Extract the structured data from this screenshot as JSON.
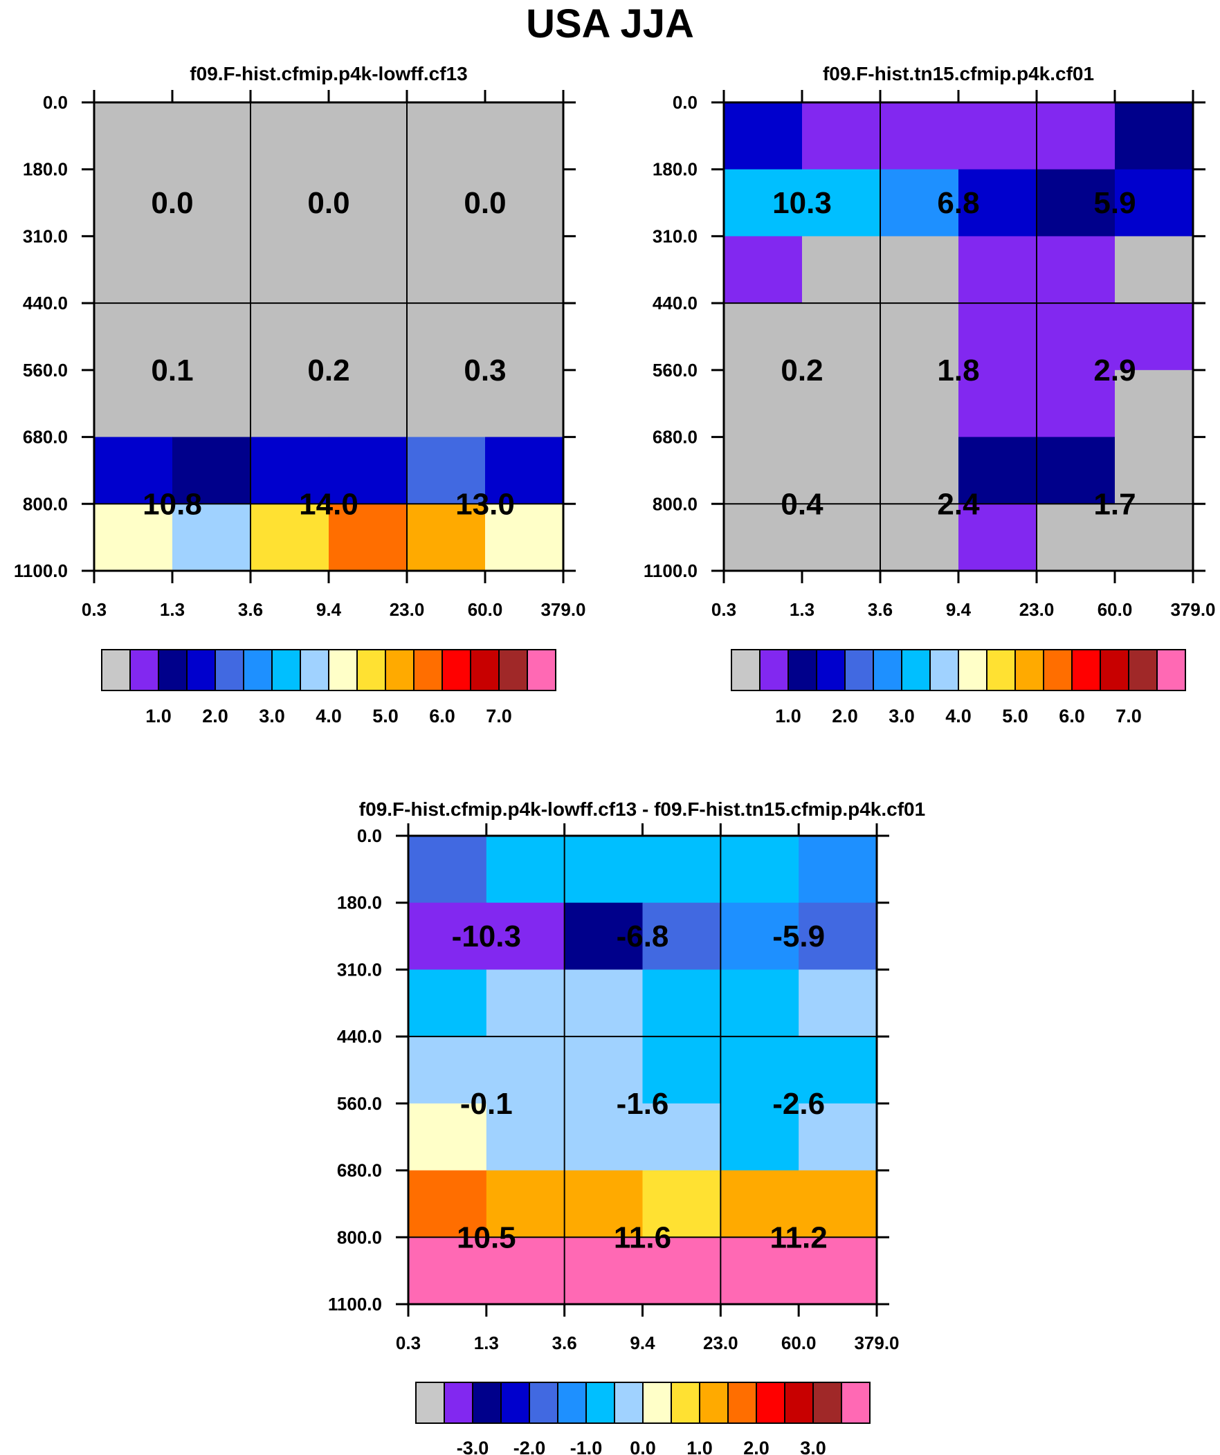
{
  "figure_title": "USA JJA",
  "chart_data": [
    {
      "type": "heatmap",
      "title": "f09.F-hist.cfmip.p4k-lowff.cf13",
      "y_ticks": [
        "0.0",
        "180.0",
        "310.0",
        "440.0",
        "560.0",
        "680.0",
        "800.0",
        "1100.0"
      ],
      "x_ticks": [
        "0.3",
        "1.3",
        "3.6",
        "9.4",
        "23.0",
        "60.0",
        "379.0"
      ],
      "cell_colors": [
        [
          "#bebebe",
          "#bebebe",
          "#bebebe",
          "#bebebe",
          "#bebebe",
          "#bebebe"
        ],
        [
          "#bebebe",
          "#bebebe",
          "#bebebe",
          "#bebebe",
          "#bebebe",
          "#bebebe"
        ],
        [
          "#bebebe",
          "#bebebe",
          "#bebebe",
          "#bebebe",
          "#bebebe",
          "#bebebe"
        ],
        [
          "#bebebe",
          "#bebebe",
          "#bebebe",
          "#bebebe",
          "#bebebe",
          "#bebebe"
        ],
        [
          "#bebebe",
          "#bebebe",
          "#bebebe",
          "#bebebe",
          "#bebebe",
          "#bebebe"
        ],
        [
          "#0000cd",
          "#00008b",
          "#0000cd",
          "#0000cd",
          "#4169e1",
          "#0000cd"
        ],
        [
          "#ffffc8",
          "#a0d2ff",
          "#ffe132",
          "#ff6e00",
          "#ffaa00",
          "#ffffc8"
        ]
      ],
      "annotations": [
        [
          "0.0",
          "0.0",
          "0.0"
        ],
        [
          "0.1",
          "0.2",
          "0.3"
        ],
        [
          "10.8",
          "14.0",
          "13.0"
        ]
      ],
      "colorbar": {
        "colors": [
          "#c8c8c8",
          "#8228f0",
          "#00008b",
          "#0000cd",
          "#4169e1",
          "#1e90ff",
          "#00bfff",
          "#a0d2ff",
          "#ffffc8",
          "#ffe132",
          "#ffaa00",
          "#ff6e00",
          "#ff0000",
          "#c80000",
          "#a02828",
          "#ff69b4"
        ],
        "labels": [
          "1.0",
          "2.0",
          "3.0",
          "4.0",
          "5.0",
          "6.0",
          "7.0"
        ]
      }
    },
    {
      "type": "heatmap",
      "title": "f09.F-hist.tn15.cfmip.p4k.cf01",
      "y_ticks": [
        "0.0",
        "180.0",
        "310.0",
        "440.0",
        "560.0",
        "680.0",
        "800.0",
        "1100.0"
      ],
      "x_ticks": [
        "0.3",
        "1.3",
        "3.6",
        "9.4",
        "23.0",
        "60.0",
        "379.0"
      ],
      "cell_colors": [
        [
          "#0000cd",
          "#8228f0",
          "#8228f0",
          "#8228f0",
          "#8228f0",
          "#00008b"
        ],
        [
          "#00bfff",
          "#00bfff",
          "#1e90ff",
          "#0000cd",
          "#00008b",
          "#0000cd"
        ],
        [
          "#8228f0",
          "#bebebe",
          "#bebebe",
          "#8228f0",
          "#8228f0",
          "#bebebe"
        ],
        [
          "#bebebe",
          "#bebebe",
          "#bebebe",
          "#8228f0",
          "#8228f0",
          "#8228f0"
        ],
        [
          "#bebebe",
          "#bebebe",
          "#bebebe",
          "#8228f0",
          "#8228f0",
          "#bebebe"
        ],
        [
          "#bebebe",
          "#bebebe",
          "#bebebe",
          "#00008b",
          "#00008b",
          "#bebebe"
        ],
        [
          "#bebebe",
          "#bebebe",
          "#bebebe",
          "#8228f0",
          "#bebebe",
          "#bebebe"
        ]
      ],
      "annotations": [
        [
          "10.3",
          "6.8",
          "5.9"
        ],
        [
          "0.2",
          "1.8",
          "2.9"
        ],
        [
          "0.4",
          "2.4",
          "1.7"
        ]
      ],
      "colorbar": {
        "colors": [
          "#c8c8c8",
          "#8228f0",
          "#00008b",
          "#0000cd",
          "#4169e1",
          "#1e90ff",
          "#00bfff",
          "#a0d2ff",
          "#ffffc8",
          "#ffe132",
          "#ffaa00",
          "#ff6e00",
          "#ff0000",
          "#c80000",
          "#a02828",
          "#ff69b4"
        ],
        "labels": [
          "1.0",
          "2.0",
          "3.0",
          "4.0",
          "5.0",
          "6.0",
          "7.0"
        ]
      }
    },
    {
      "type": "heatmap",
      "title": "f09.F-hist.cfmip.p4k-lowff.cf13 - f09.F-hist.tn15.cfmip.p4k.cf01",
      "y_ticks": [
        "0.0",
        "180.0",
        "310.0",
        "440.0",
        "560.0",
        "680.0",
        "800.0",
        "1100.0"
      ],
      "x_ticks": [
        "0.3",
        "1.3",
        "3.6",
        "9.4",
        "23.0",
        "60.0",
        "379.0"
      ],
      "cell_colors": [
        [
          "#4169e1",
          "#00bfff",
          "#00bfff",
          "#00bfff",
          "#00bfff",
          "#1e90ff"
        ],
        [
          "#8228f0",
          "#8228f0",
          "#00008b",
          "#4169e1",
          "#1e90ff",
          "#4169e1"
        ],
        [
          "#00bfff",
          "#a0d2ff",
          "#a0d2ff",
          "#00bfff",
          "#00bfff",
          "#a0d2ff"
        ],
        [
          "#a0d2ff",
          "#a0d2ff",
          "#a0d2ff",
          "#00bfff",
          "#00bfff",
          "#00bfff"
        ],
        [
          "#ffffc8",
          "#a0d2ff",
          "#a0d2ff",
          "#a0d2ff",
          "#00bfff",
          "#a0d2ff"
        ],
        [
          "#ff6e00",
          "#ffaa00",
          "#ffaa00",
          "#ffe132",
          "#ffaa00",
          "#ffaa00"
        ],
        [
          "#ff69b4",
          "#ff69b4",
          "#ff69b4",
          "#ff69b4",
          "#ff69b4",
          "#ff69b4"
        ]
      ],
      "annotations": [
        [
          "-10.3",
          "-6.8",
          "-5.9"
        ],
        [
          "-0.1",
          "-1.6",
          "-2.6"
        ],
        [
          "10.5",
          "11.6",
          "11.2"
        ]
      ],
      "colorbar": {
        "colors": [
          "#c8c8c8",
          "#8228f0",
          "#00008b",
          "#0000cd",
          "#4169e1",
          "#1e90ff",
          "#00bfff",
          "#a0d2ff",
          "#ffffc8",
          "#ffe132",
          "#ffaa00",
          "#ff6e00",
          "#ff0000",
          "#c80000",
          "#a02828",
          "#ff69b4"
        ],
        "labels": [
          "-3.0",
          "-2.0",
          "-1.0",
          "0.0",
          "1.0",
          "2.0",
          "3.0"
        ]
      }
    }
  ]
}
